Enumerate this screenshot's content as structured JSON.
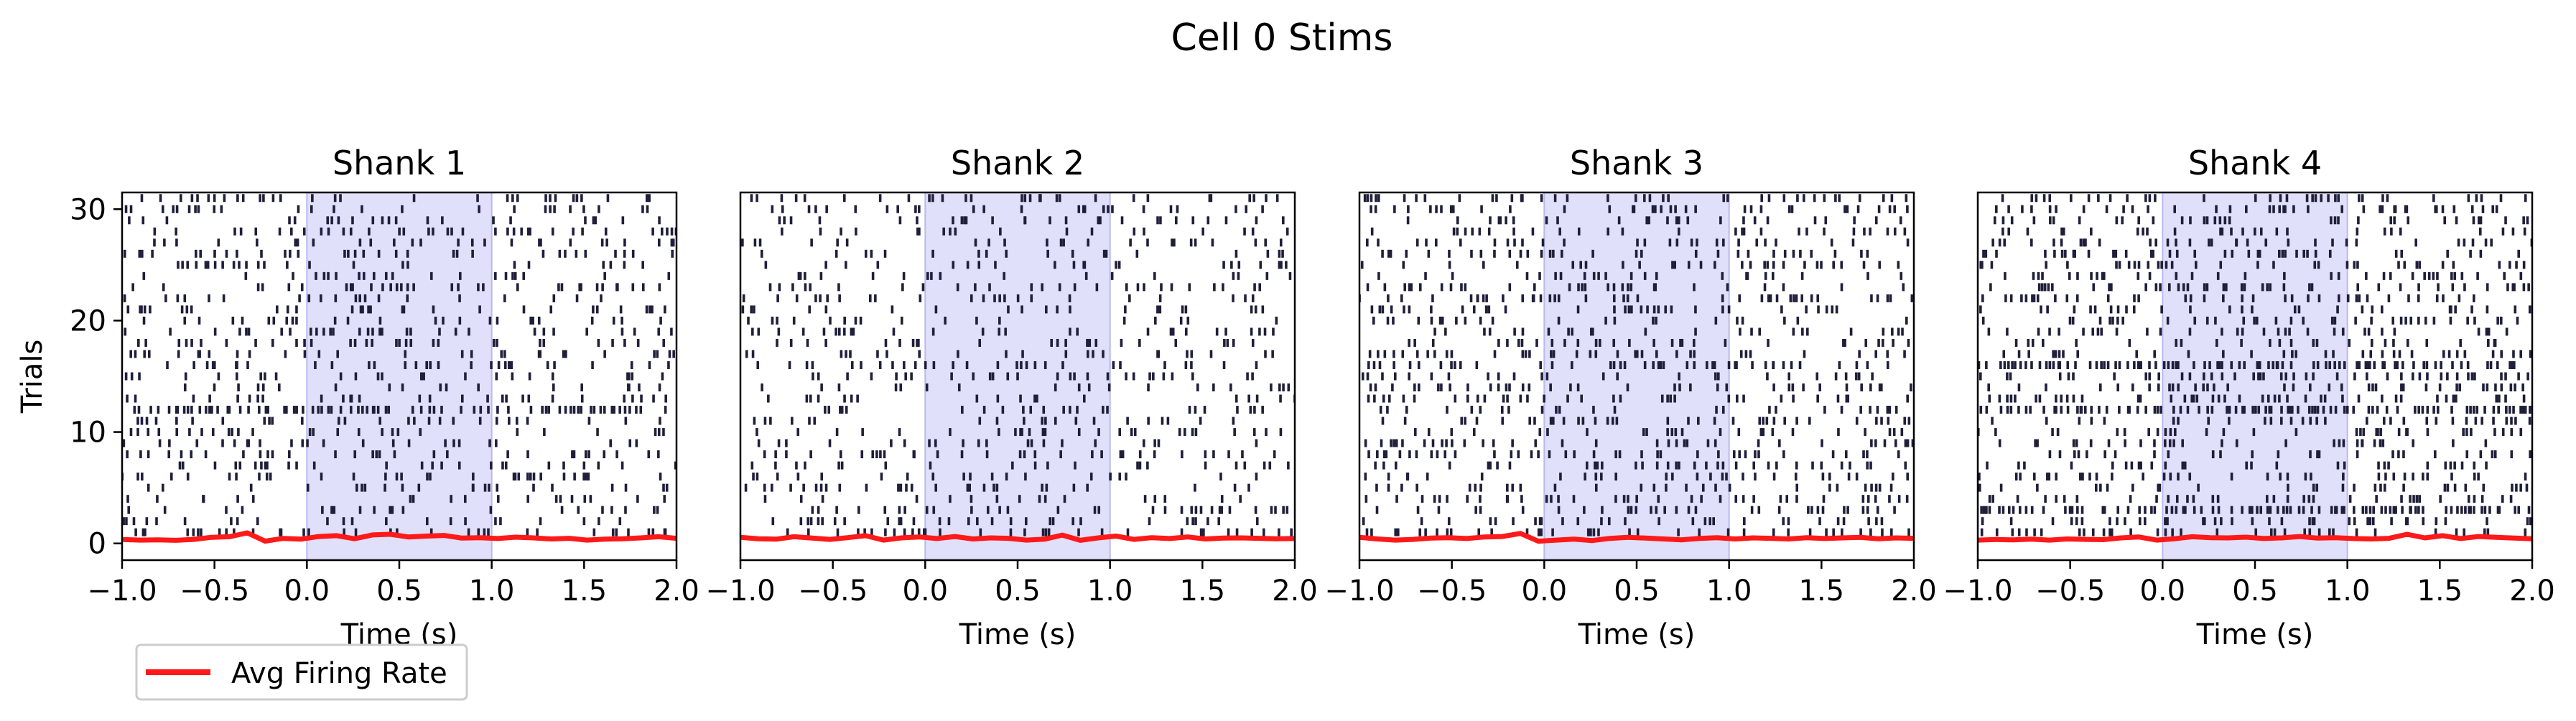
{
  "figure": {
    "suptitle": "Cell 0 Stims"
  },
  "colors": {
    "spike": "#1f1f3a",
    "avg_rate": "#ff1a1a",
    "stim_fill": "#e0e0fb",
    "stim_edge": "#b9b9ee",
    "axes": "#000000"
  },
  "chart_data": [
    {
      "type": "scatter",
      "title": "Shank 1",
      "xlabel": "Time (s)",
      "ylabel": "Trials",
      "xlim": [
        -1.0,
        2.0
      ],
      "ylim": [
        -1.5,
        31.5
      ],
      "xticks": [
        "−1.0",
        "−0.5",
        "0.0",
        "0.5",
        "1.0",
        "1.5",
        "2.0"
      ],
      "yticks": [
        "0",
        "10",
        "20",
        "30"
      ],
      "stim_window": [
        0.0,
        1.0
      ],
      "n_trials": 31,
      "seed": 11,
      "burst_trials": [
        12
      ],
      "spike_density": 0.18,
      "avg_rate": [
        0.35,
        0.3,
        0.32,
        0.28,
        0.36,
        0.55,
        0.6,
        0.95,
        0.2,
        0.45,
        0.38,
        0.62,
        0.7,
        0.42,
        0.76,
        0.82,
        0.58,
        0.66,
        0.72,
        0.48,
        0.52,
        0.44,
        0.56,
        0.5,
        0.4,
        0.46,
        0.3,
        0.38,
        0.42,
        0.5,
        0.6,
        0.45
      ]
    },
    {
      "type": "scatter",
      "title": "Shank 2",
      "xlabel": "Time (s)",
      "ylabel": "",
      "xlim": [
        -1.0,
        2.0
      ],
      "ylim": [
        -1.5,
        31.5
      ],
      "xticks": [
        "−1.0",
        "−0.5",
        "0.0",
        "0.5",
        "1.0",
        "1.5",
        "2.0"
      ],
      "yticks": [],
      "stim_window": [
        0.0,
        1.0
      ],
      "n_trials": 31,
      "seed": 23,
      "burst_trials": [],
      "spike_density": 0.15,
      "avg_rate": [
        0.55,
        0.42,
        0.38,
        0.6,
        0.48,
        0.36,
        0.52,
        0.7,
        0.3,
        0.5,
        0.58,
        0.44,
        0.62,
        0.4,
        0.5,
        0.46,
        0.3,
        0.38,
        0.75,
        0.28,
        0.5,
        0.66,
        0.36,
        0.52,
        0.44,
        0.58,
        0.4,
        0.48,
        0.5,
        0.46,
        0.42,
        0.44
      ]
    },
    {
      "type": "scatter",
      "title": "Shank 3",
      "xlabel": "Time (s)",
      "ylabel": "",
      "xlim": [
        -1.0,
        2.0
      ],
      "ylim": [
        -1.5,
        31.5
      ],
      "xticks": [
        "−1.0",
        "−0.5",
        "0.0",
        "0.5",
        "1.0",
        "1.5",
        "2.0"
      ],
      "yticks": [],
      "stim_window": [
        0.0,
        1.0
      ],
      "n_trials": 31,
      "seed": 37,
      "burst_trials": [],
      "spike_density": 0.2,
      "avg_rate": [
        0.55,
        0.4,
        0.3,
        0.36,
        0.48,
        0.52,
        0.44,
        0.58,
        0.62,
        0.9,
        0.2,
        0.3,
        0.38,
        0.25,
        0.45,
        0.55,
        0.48,
        0.4,
        0.32,
        0.45,
        0.52,
        0.4,
        0.5,
        0.46,
        0.4,
        0.52,
        0.44,
        0.5,
        0.55,
        0.42,
        0.5,
        0.46
      ]
    },
    {
      "type": "scatter",
      "title": "Shank 4",
      "xlabel": "Time (s)",
      "ylabel": "",
      "xlim": [
        -1.0,
        2.0
      ],
      "ylim": [
        -1.5,
        31.5
      ],
      "xticks": [
        "−1.0",
        "−0.5",
        "0.0",
        "0.5",
        "1.0",
        "1.5",
        "2.0"
      ],
      "yticks": [],
      "stim_window": [
        0.0,
        1.0
      ],
      "n_trials": 31,
      "seed": 53,
      "burst_trials": [
        16,
        12,
        3
      ],
      "spike_density": 0.22,
      "avg_rate": [
        0.3,
        0.35,
        0.32,
        0.38,
        0.3,
        0.4,
        0.36,
        0.34,
        0.5,
        0.58,
        0.3,
        0.42,
        0.6,
        0.52,
        0.5,
        0.56,
        0.44,
        0.5,
        0.62,
        0.48,
        0.52,
        0.44,
        0.4,
        0.46,
        0.82,
        0.5,
        0.7,
        0.44,
        0.62,
        0.55,
        0.48,
        0.42
      ]
    }
  ],
  "legend": {
    "label": "Avg Firing Rate",
    "placement": "lower-left"
  }
}
